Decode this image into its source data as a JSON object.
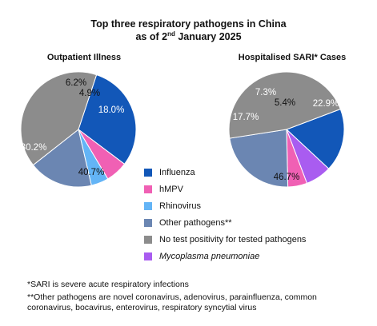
{
  "title_line1": "Top three respiratory pathogens in China",
  "title_line2_pre": "as of 2",
  "title_line2_sup": "nd",
  "title_line2_post": " January 2025",
  "footnotes": [
    "*SARI is severe acute respiratory infections",
    "**Other pathogens are novel coronavirus, adenovirus, parainfluenza, common",
    "coronavirus, bocavirus, enterovirus, respiratory syncytial virus"
  ],
  "colors": {
    "influenza": "#1257b8",
    "hmpv": "#f060b4",
    "rhinovirus": "#63b4f6",
    "other": "#6b86b2",
    "none": "#8c8c8c",
    "mycoplasma": "#a95cf0"
  },
  "chart_data": [
    {
      "type": "pie",
      "title": "Outpatient Illness",
      "slices": [
        {
          "name": "Influenza",
          "value": 30.2,
          "label": "30.2%",
          "color_key": "influenza"
        },
        {
          "name": "hMPV",
          "value": 6.2,
          "label": "6.2%",
          "color_key": "hmpv"
        },
        {
          "name": "Rhinovirus",
          "value": 4.9,
          "label": "4.9%",
          "color_key": "rhinovirus"
        },
        {
          "name": "Other pathogens**",
          "value": 18.0,
          "label": "18.0%",
          "color_key": "other"
        },
        {
          "name": "No test positivity for tested pathogens",
          "value": 40.7,
          "label": "40.7%",
          "color_key": "none"
        }
      ]
    },
    {
      "type": "pie",
      "title": "Hospitalised SARI* Cases",
      "slices": [
        {
          "name": "Influenza",
          "value": 17.7,
          "label": "17.7%",
          "color_key": "influenza"
        },
        {
          "name": "Mycoplasma pneumoniae",
          "value": 7.3,
          "label": "7.3%",
          "color_key": "mycoplasma"
        },
        {
          "name": "hMPV",
          "value": 5.4,
          "label": "5.4%",
          "color_key": "hmpv"
        },
        {
          "name": "Other pathogens**",
          "value": 22.9,
          "label": "22.9%",
          "color_key": "other"
        },
        {
          "name": "No test positivity for tested pathogens",
          "value": 46.7,
          "label": "46.7%",
          "color_key": "none"
        }
      ]
    }
  ],
  "legend": [
    {
      "label": "Influenza",
      "color_key": "influenza",
      "italic": false
    },
    {
      "label": "hMPV",
      "color_key": "hmpv",
      "italic": false
    },
    {
      "label": "Rhinovirus",
      "color_key": "rhinovirus",
      "italic": false
    },
    {
      "label": "Other pathogens**",
      "color_key": "other",
      "italic": false
    },
    {
      "label": "No test positivity for tested pathogens",
      "color_key": "none",
      "italic": false
    },
    {
      "label": "Mycoplasma pneumoniae",
      "color_key": "mycoplasma",
      "italic": true
    }
  ]
}
